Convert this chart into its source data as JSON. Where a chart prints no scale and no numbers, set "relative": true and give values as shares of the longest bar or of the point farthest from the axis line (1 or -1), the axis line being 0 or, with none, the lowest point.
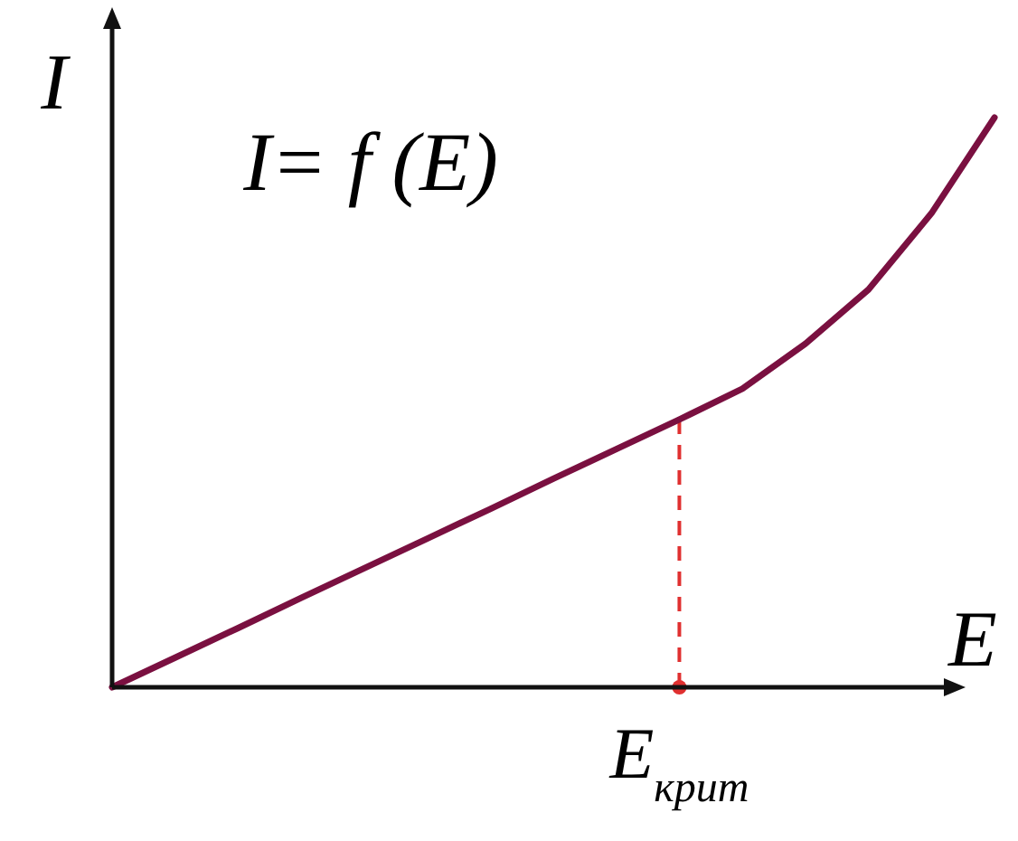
{
  "chart_data": {
    "type": "line",
    "title": "I= f (E)",
    "xlabel": "E",
    "ylabel": "I",
    "relative": true,
    "categories": [
      null,
      null,
      null,
      null,
      null,
      null,
      null,
      null,
      null,
      null,
      null,
      null,
      null,
      null,
      null
    ],
    "series": [
      {
        "color": "#7a1040",
        "values": [
          0,
          0.052,
          0.104,
          0.157,
          0.209,
          0.261,
          0.313,
          0.366,
          0.418,
          0.47,
          0.524,
          0.603,
          0.698,
          0.832,
          1
        ]
      }
    ],
    "annotations": [
      {
        "text": "E$_{крит}$",
        "y": 0.47
      }
    ]
  }
}
